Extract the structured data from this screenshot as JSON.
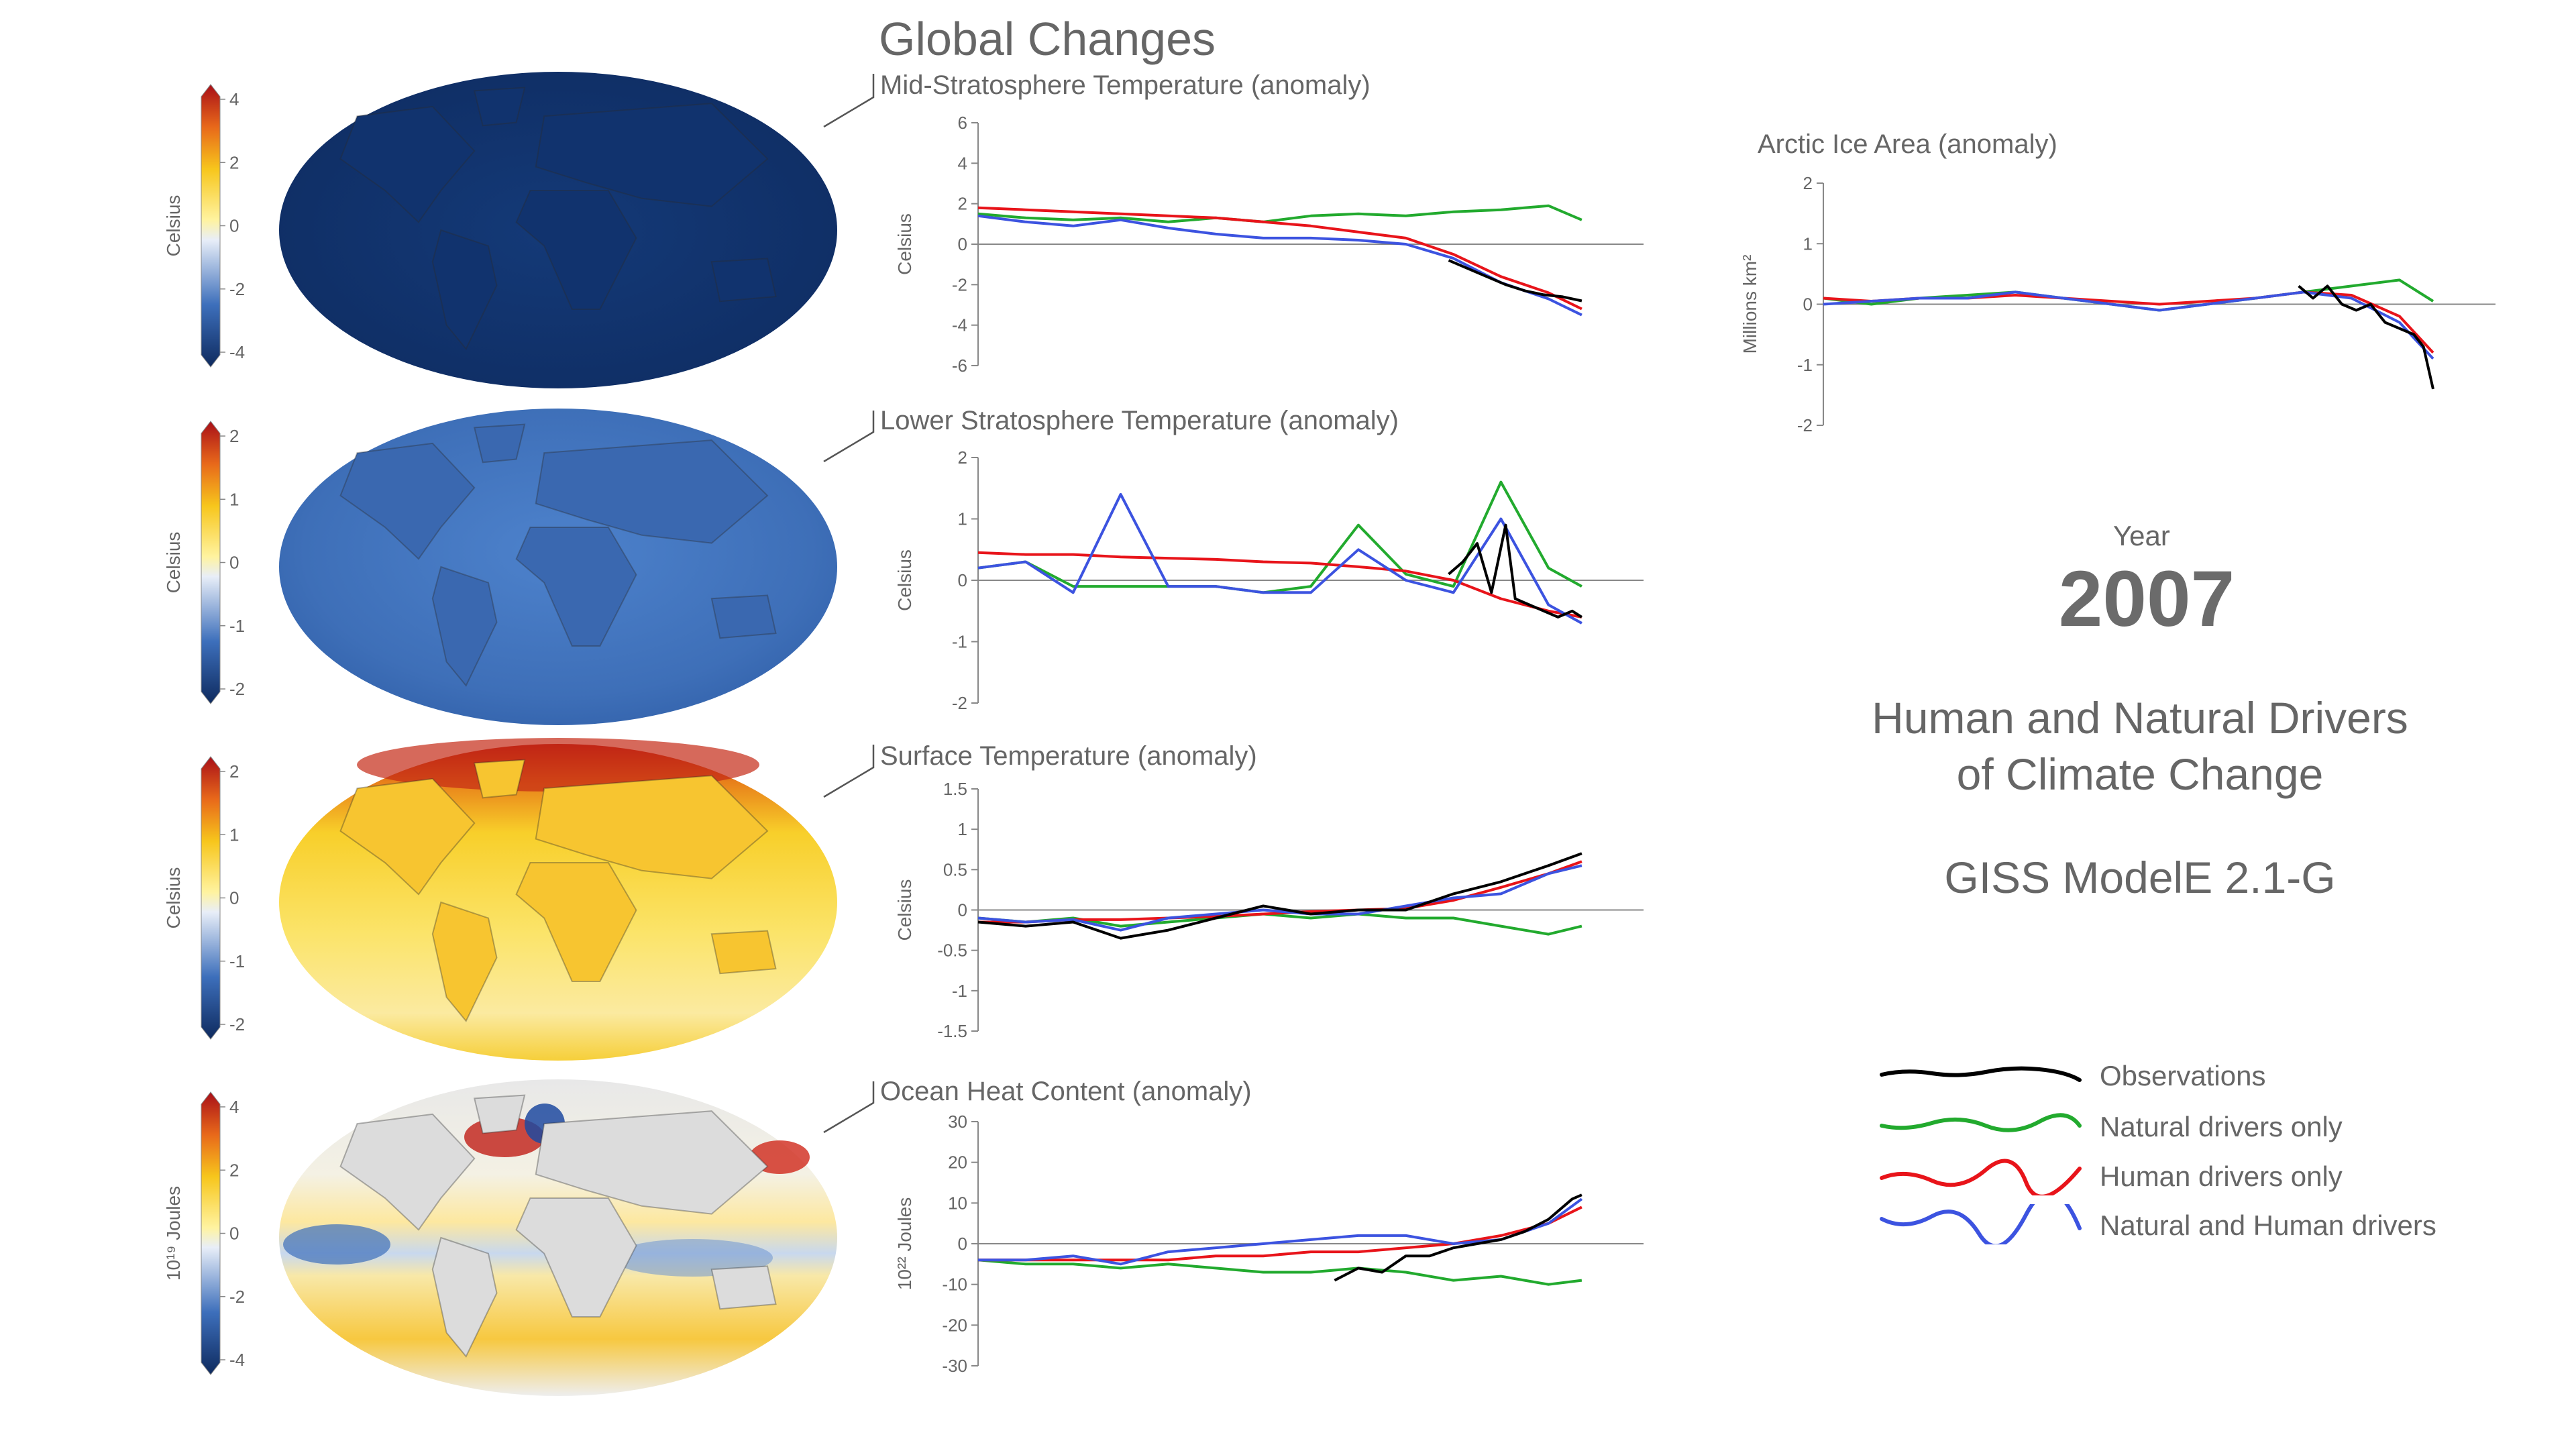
{
  "heading": "Global Changes",
  "year_label": "Year",
  "year_value": "2007",
  "subtitle_line1": "Human and Natural Drivers",
  "subtitle_line2": "of Climate Change",
  "model": "GISS ModelE 2.1-G",
  "colors": {
    "observations": "#000000",
    "natural": "#22aa2e",
    "human": "#e8141a",
    "both": "#3c53e0",
    "deep_blue": "#12316a",
    "mid_blue": "#3d6fbb",
    "yellow": "#f8d820",
    "orange": "#f08a1a",
    "red": "#b8141a"
  },
  "legend": [
    {
      "label": "Observations",
      "series": "observations",
      "color": "#000000"
    },
    {
      "label": "Natural drivers only",
      "series": "natural",
      "color": "#22aa2e"
    },
    {
      "label": "Human drivers only",
      "series": "human",
      "color": "#e8141a"
    },
    {
      "label": "Natural and Human drivers",
      "series": "both",
      "color": "#3c53e0"
    }
  ],
  "maps": [
    {
      "name": "mid-stratosphere-map",
      "colorbar_label": "Celsius",
      "colorbar_ticks": [
        "4",
        "2",
        "0",
        "-2",
        "-4"
      ],
      "style": "deep-blue"
    },
    {
      "name": "lower-stratosphere-map",
      "colorbar_label": "Celsius",
      "colorbar_ticks": [
        "2",
        "1",
        "0",
        "-1",
        "-2"
      ],
      "style": "mid-blue"
    },
    {
      "name": "surface-temperature-map",
      "colorbar_label": "Celsius",
      "colorbar_ticks": [
        "2",
        "1",
        "0",
        "-1",
        "-2"
      ],
      "style": "warm"
    },
    {
      "name": "ocean-heat-map",
      "colorbar_label": "10¹⁹ Joules",
      "colorbar_ticks": [
        "4",
        "2",
        "0",
        "-2",
        "-4"
      ],
      "style": "mixed"
    }
  ],
  "chart_data": [
    {
      "type": "line",
      "title": "Mid-Stratosphere Temperature (anomaly)",
      "ylabel": "Celsius",
      "ylim": [
        -6,
        6
      ],
      "yticks": [
        "6",
        "4",
        "2",
        "0",
        "-2",
        "-4",
        "-6"
      ],
      "x": [
        1880,
        1890,
        1900,
        1910,
        1920,
        1930,
        1940,
        1950,
        1960,
        1970,
        1980,
        1990,
        2000,
        2007
      ],
      "series": [
        {
          "name": "observations",
          "x": [
            1979,
            1983,
            1987,
            1991,
            1995,
            1999,
            2003,
            2007
          ],
          "values": [
            -0.8,
            -1.2,
            -1.6,
            -2.0,
            -2.3,
            -2.5,
            -2.6,
            -2.8
          ]
        },
        {
          "name": "natural",
          "values": [
            1.5,
            1.3,
            1.2,
            1.3,
            1.1,
            1.3,
            1.1,
            1.4,
            1.5,
            1.4,
            1.6,
            1.7,
            1.9,
            1.2
          ]
        },
        {
          "name": "human",
          "values": [
            1.8,
            1.7,
            1.6,
            1.5,
            1.4,
            1.3,
            1.1,
            0.9,
            0.6,
            0.3,
            -0.5,
            -1.6,
            -2.4,
            -3.2
          ]
        },
        {
          "name": "both",
          "values": [
            1.4,
            1.1,
            0.9,
            1.2,
            0.8,
            0.5,
            0.3,
            0.3,
            0.2,
            0.0,
            -0.7,
            -1.9,
            -2.7,
            -3.5
          ]
        }
      ]
    },
    {
      "type": "line",
      "title": "Lower Stratosphere Temperature (anomaly)",
      "ylabel": "Celsius",
      "ylim": [
        -2,
        2
      ],
      "yticks": [
        "2",
        "1",
        "0",
        "-1",
        "-2"
      ],
      "x": [
        1880,
        1890,
        1900,
        1910,
        1920,
        1930,
        1940,
        1950,
        1960,
        1970,
        1980,
        1990,
        2000,
        2007
      ],
      "series": [
        {
          "name": "observations",
          "x": [
            1979,
            1982,
            1985,
            1988,
            1991,
            1993,
            1996,
            1999,
            2002,
            2005,
            2007
          ],
          "values": [
            0.1,
            0.3,
            0.6,
            -0.2,
            0.9,
            -0.3,
            -0.4,
            -0.5,
            -0.6,
            -0.5,
            -0.6
          ]
        },
        {
          "name": "natural",
          "values": [
            0.2,
            0.3,
            -0.1,
            -0.1,
            -0.1,
            -0.1,
            -0.2,
            -0.1,
            0.9,
            0.1,
            -0.1,
            1.6,
            0.2,
            -0.1
          ]
        },
        {
          "name": "human",
          "values": [
            0.45,
            0.42,
            0.42,
            0.38,
            0.36,
            0.34,
            0.3,
            0.28,
            0.22,
            0.15,
            0.0,
            -0.3,
            -0.5,
            -0.6
          ]
        },
        {
          "name": "both",
          "values": [
            0.2,
            0.3,
            -0.2,
            1.4,
            -0.1,
            -0.1,
            -0.2,
            -0.2,
            0.5,
            0.0,
            -0.2,
            1.0,
            -0.4,
            -0.7
          ]
        }
      ]
    },
    {
      "type": "line",
      "title": "Surface Temperature (anomaly)",
      "ylabel": "Celsius",
      "ylim": [
        -1.5,
        1.5
      ],
      "yticks": [
        "1.5",
        "1",
        "0.5",
        "0",
        "-0.5",
        "-1",
        "-1.5"
      ],
      "x": [
        1880,
        1890,
        1900,
        1910,
        1920,
        1930,
        1940,
        1950,
        1960,
        1970,
        1980,
        1990,
        2000,
        2007
      ],
      "series": [
        {
          "name": "observations",
          "values": [
            -0.15,
            -0.2,
            -0.15,
            -0.35,
            -0.25,
            -0.1,
            0.05,
            -0.05,
            0.0,
            0.0,
            0.2,
            0.35,
            0.55,
            0.7
          ]
        },
        {
          "name": "natural",
          "values": [
            -0.1,
            -0.15,
            -0.1,
            -0.2,
            -0.15,
            -0.1,
            -0.05,
            -0.1,
            -0.05,
            -0.1,
            -0.1,
            -0.2,
            -0.3,
            -0.2
          ]
        },
        {
          "name": "human",
          "values": [
            -0.15,
            -0.15,
            -0.12,
            -0.12,
            -0.1,
            -0.08,
            -0.05,
            -0.02,
            0.0,
            0.02,
            0.12,
            0.28,
            0.45,
            0.6
          ]
        },
        {
          "name": "both",
          "values": [
            -0.1,
            -0.15,
            -0.12,
            -0.25,
            -0.1,
            -0.05,
            0.0,
            -0.05,
            -0.05,
            0.05,
            0.15,
            0.2,
            0.45,
            0.55
          ]
        }
      ]
    },
    {
      "type": "line",
      "title": "Ocean Heat Content (anomaly)",
      "ylabel": "10²² Joules",
      "ylim": [
        -30,
        30
      ],
      "yticks": [
        "30",
        "20",
        "10",
        "0",
        "-10",
        "-20",
        "-30"
      ],
      "x": [
        1880,
        1890,
        1900,
        1910,
        1920,
        1930,
        1940,
        1950,
        1960,
        1970,
        1980,
        1990,
        2000,
        2007
      ],
      "series": [
        {
          "name": "observations",
          "x": [
            1955,
            1960,
            1965,
            1970,
            1975,
            1980,
            1985,
            1990,
            1995,
            2000,
            2005,
            2007
          ],
          "values": [
            -9,
            -6,
            -7,
            -3,
            -3,
            -1,
            0,
            1,
            3,
            6,
            11,
            12
          ]
        },
        {
          "name": "natural",
          "values": [
            -4,
            -5,
            -5,
            -6,
            -5,
            -6,
            -7,
            -7,
            -6,
            -7,
            -9,
            -8,
            -10,
            -9
          ]
        },
        {
          "name": "human",
          "values": [
            -4,
            -4,
            -4,
            -4,
            -4,
            -3,
            -3,
            -2,
            -2,
            -1,
            0,
            2,
            5,
            9
          ]
        },
        {
          "name": "both",
          "values": [
            -4,
            -4,
            -3,
            -5,
            -2,
            -1,
            0,
            1,
            2,
            2,
            0,
            1,
            5,
            11
          ]
        }
      ]
    },
    {
      "type": "line",
      "title": "Arctic Ice Area (anomaly)",
      "ylabel": "Millions km²",
      "ylim": [
        -2,
        2
      ],
      "yticks": [
        "2",
        "1",
        "0",
        "-1",
        "-2"
      ],
      "x": [
        1880,
        1890,
        1900,
        1910,
        1920,
        1930,
        1940,
        1950,
        1960,
        1970,
        1980,
        1990,
        2000,
        2007
      ],
      "series": [
        {
          "name": "observations",
          "x": [
            1979,
            1982,
            1985,
            1988,
            1991,
            1994,
            1997,
            2000,
            2003,
            2005,
            2007
          ],
          "values": [
            0.3,
            0.1,
            0.3,
            0.0,
            -0.1,
            0.0,
            -0.3,
            -0.4,
            -0.5,
            -0.7,
            -1.4
          ]
        },
        {
          "name": "natural",
          "values": [
            0.1,
            0.0,
            0.1,
            0.15,
            0.2,
            0.1,
            0.0,
            -0.1,
            0.0,
            0.1,
            0.2,
            0.3,
            0.4,
            0.05
          ]
        },
        {
          "name": "human",
          "values": [
            0.1,
            0.05,
            0.1,
            0.1,
            0.15,
            0.1,
            0.05,
            0.0,
            0.05,
            0.1,
            0.2,
            0.15,
            -0.2,
            -0.8
          ]
        },
        {
          "name": "both",
          "values": [
            0.0,
            0.05,
            0.1,
            0.1,
            0.2,
            0.1,
            0.0,
            -0.1,
            0.0,
            0.1,
            0.2,
            0.1,
            -0.3,
            -0.9
          ]
        }
      ]
    }
  ]
}
